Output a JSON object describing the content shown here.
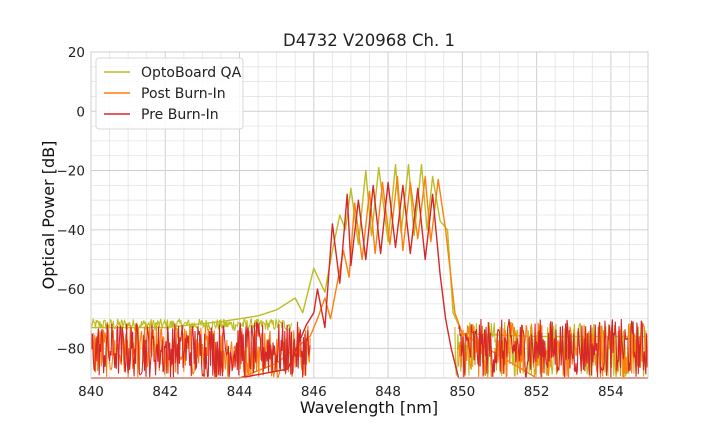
{
  "chart_data": {
    "type": "line",
    "title": "D4732 V20968 Ch. 1",
    "xlabel": "Wavelength [nm]",
    "ylabel": "Optical Power [dB]",
    "xlim": [
      840,
      855
    ],
    "ylim": [
      -90,
      20
    ],
    "xticks": [
      840,
      842,
      844,
      846,
      848,
      850,
      852,
      854
    ],
    "yticks": [
      20,
      0,
      -20,
      -40,
      -60,
      -80
    ],
    "ytick_labels": [
      "20",
      "0",
      "−20",
      "−40",
      "−60",
      "−80"
    ],
    "grid": true,
    "minor_grid": true,
    "legend_position": "top-left",
    "series": [
      {
        "name": "OptoBoard QA",
        "color": "#bcbd22",
        "x": [
          840.0,
          842.0,
          843.5,
          844.5,
          845.0,
          845.5,
          845.7,
          846.0,
          846.3,
          846.5,
          846.7,
          846.85,
          847.0,
          847.2,
          847.4,
          847.55,
          847.75,
          848.0,
          848.2,
          848.35,
          848.55,
          848.7,
          848.9,
          849.05,
          849.2,
          849.4,
          849.6,
          849.75,
          849.9,
          850.0,
          852.0,
          855.0
        ],
        "y": [
          -73,
          -73,
          -71,
          -69,
          -67,
          -63,
          -68,
          -53,
          -61,
          -47,
          -35,
          -40,
          -26,
          -45,
          -20,
          -42,
          -19,
          -44,
          -18,
          -41,
          -18,
          -42,
          -18,
          -40,
          -22,
          -37,
          -40,
          -68,
          -72,
          -75,
          -76,
          -76
        ],
        "noise_ranges": [
          [
            840.0,
            845.4,
            -74,
            -70
          ],
          [
            849.8,
            855.0,
            -90,
            -71
          ]
        ]
      },
      {
        "name": "Post Burn-In",
        "color": "#ff7f0e",
        "x": [
          840.0,
          844.0,
          845.0,
          845.5,
          845.9,
          846.1,
          846.3,
          846.45,
          846.6,
          846.8,
          846.95,
          847.1,
          847.3,
          847.5,
          847.65,
          847.85,
          848.05,
          848.25,
          848.4,
          848.6,
          848.8,
          849.0,
          849.15,
          849.35,
          849.55,
          849.8,
          850.0,
          852.0,
          855.0
        ],
        "y": [
          -90,
          -90,
          -85,
          -80,
          -76,
          -70,
          -63,
          -70,
          -60,
          -47,
          -56,
          -31,
          -50,
          -27,
          -48,
          -24,
          -45,
          -22,
          -47,
          -24,
          -43,
          -22,
          -44,
          -23,
          -40,
          -68,
          -75,
          -90,
          -90
        ],
        "noise_ranges": [
          [
            840.0,
            845.9,
            -90,
            -72
          ],
          [
            849.9,
            855.0,
            -90,
            -71
          ]
        ]
      },
      {
        "name": "Pre Burn-In",
        "color": "#d62728",
        "x": [
          840.0,
          844.0,
          845.3,
          845.8,
          846.0,
          846.1,
          846.3,
          846.5,
          846.7,
          846.9,
          847.0,
          847.2,
          847.4,
          847.6,
          847.8,
          848.0,
          848.2,
          848.4,
          848.6,
          848.8,
          849.0,
          849.2,
          849.4,
          849.55,
          849.7,
          849.9,
          852.0,
          855.0
        ],
        "y": [
          -90,
          -90,
          -87,
          -72,
          -68,
          -60,
          -73,
          -38,
          -58,
          -28,
          -52,
          -30,
          -50,
          -25,
          -48,
          -24,
          -46,
          -25,
          -48,
          -26,
          -50,
          -28,
          -55,
          -70,
          -80,
          -90,
          -90,
          -90
        ],
        "noise_ranges": [
          [
            840.0,
            845.9,
            -90,
            -71
          ],
          [
            849.9,
            855.0,
            -90,
            -70
          ]
        ]
      }
    ]
  }
}
